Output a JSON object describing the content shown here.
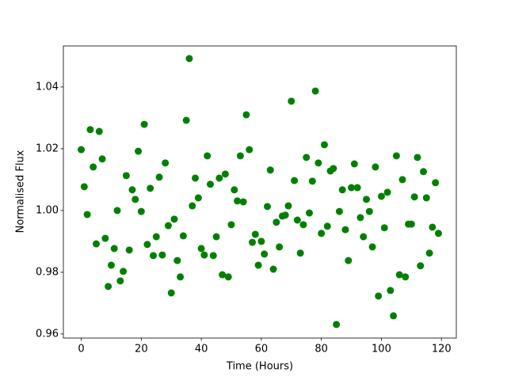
{
  "chart_data": {
    "type": "scatter",
    "xlabel": "Time (Hours)",
    "ylabel": "Normalised Flux",
    "color": "#008000",
    "x": [
      0,
      1,
      2,
      3,
      4,
      5,
      6,
      7,
      8,
      9,
      10,
      11,
      12,
      13,
      14,
      15,
      16,
      17,
      18,
      19,
      20,
      21,
      22,
      23,
      24,
      25,
      26,
      27,
      28,
      29,
      30,
      31,
      32,
      33,
      34,
      35,
      36,
      37,
      38,
      39,
      40,
      41,
      42,
      43,
      44,
      45,
      46,
      47,
      48,
      49,
      50,
      51,
      52,
      53,
      54,
      55,
      56,
      57,
      58,
      59,
      60,
      61,
      62,
      63,
      64,
      65,
      66,
      67,
      68,
      69,
      70,
      71,
      72,
      73,
      74,
      75,
      76,
      77,
      78,
      79,
      80,
      81,
      82,
      83,
      84,
      85,
      86,
      87,
      88,
      89,
      90,
      91,
      92,
      93,
      94,
      95,
      96,
      97,
      98,
      99,
      100,
      101,
      102,
      103,
      104,
      105,
      106,
      107,
      108,
      109,
      110,
      111,
      112,
      113,
      114,
      115,
      116,
      117,
      118,
      119
    ],
    "values": [
      1.0197,
      1.0077,
      0.9987,
      1.0262,
      1.0141,
      0.9892,
      1.0256,
      1.0167,
      0.991,
      0.9754,
      0.9823,
      0.9877,
      1.0,
      0.9772,
      0.9803,
      1.0113,
      0.9872,
      1.0067,
      1.0036,
      1.0192,
      0.9997,
      1.0279,
      0.989,
      1.0072,
      0.9854,
      0.9915,
      1.0108,
      0.9856,
      1.0154,
      0.9951,
      0.9733,
      0.9972,
      0.9838,
      0.9785,
      0.9918,
      1.0292,
      1.0492,
      1.0015,
      1.0105,
      1.0041,
      0.9877,
      0.9856,
      1.0177,
      1.0085,
      0.9854,
      0.9915,
      1.0105,
      0.9792,
      1.0118,
      0.9785,
      0.9954,
      1.0067,
      1.0031,
      1.0177,
      1.0028,
      1.031,
      1.0197,
      0.9897,
      0.9923,
      0.9823,
      0.99,
      0.9859,
      1.0013,
      1.0131,
      0.981,
      0.9962,
      0.9882,
      0.9982,
      0.9985,
      1.0015,
      1.0354,
      1.0097,
      0.9969,
      0.9862,
      0.9954,
      1.0172,
      0.9992,
      1.0095,
      1.0387,
      1.0154,
      0.9926,
      1.0213,
      0.9949,
      1.0128,
      1.0136,
      0.9631,
      0.9997,
      1.0067,
      0.9938,
      0.9838,
      1.0074,
      1.0151,
      1.0074,
      0.9977,
      0.9915,
      1.0036,
      0.9997,
      0.9882,
      1.0141,
      0.9723,
      1.0046,
      0.9944,
      1.0059,
      0.9741,
      0.9659,
      1.0177,
      0.9792,
      1.01,
      0.9785,
      0.9956,
      0.9956,
      1.0044,
      1.0172,
      0.9821,
      1.0126,
      1.0041,
      0.9862,
      0.9946,
      1.009,
      0.9926
    ],
    "xlim": [
      -5.95,
      124.95
    ],
    "xticks": [
      0,
      20,
      40,
      60,
      80,
      100,
      120
    ],
    "ylim": [
      0.9587,
      1.0533
    ],
    "yticks": [
      0.96,
      0.98,
      {
        "value": 1.0,
        "label": "1.00"
      },
      1.02,
      1.04
    ]
  }
}
